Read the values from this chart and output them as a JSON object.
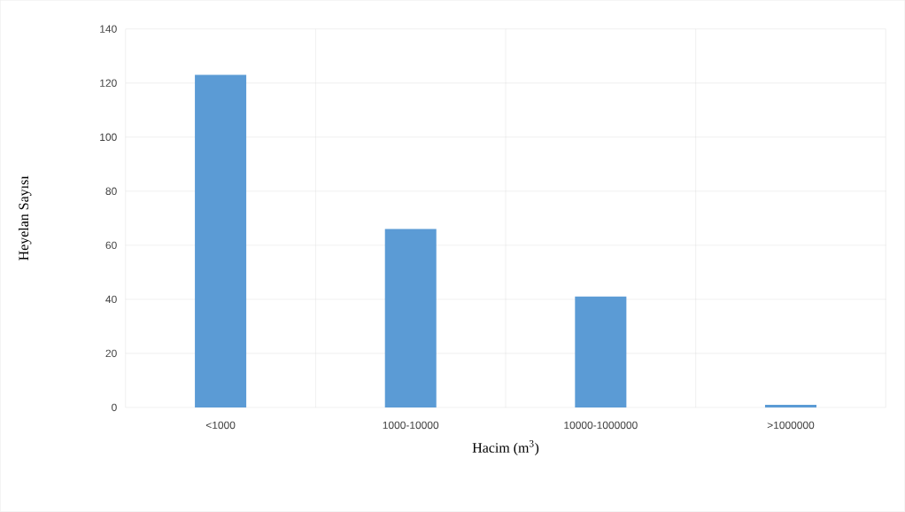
{
  "chart_data": {
    "type": "bar",
    "xlabel": "Hacim (m$^{3}$)",
    "ylabel": "Heyelan Sayısı",
    "categories": [
      "<1000",
      "1000-10000",
      "10000-1000000",
      ">1000000"
    ],
    "values": [
      123,
      66,
      41,
      1
    ],
    "color": "#5b9bd5",
    "ylim": [
      0,
      140
    ],
    "yticks": [
      0,
      20,
      40,
      60,
      80,
      100,
      120,
      140
    ],
    "grid": true
  }
}
